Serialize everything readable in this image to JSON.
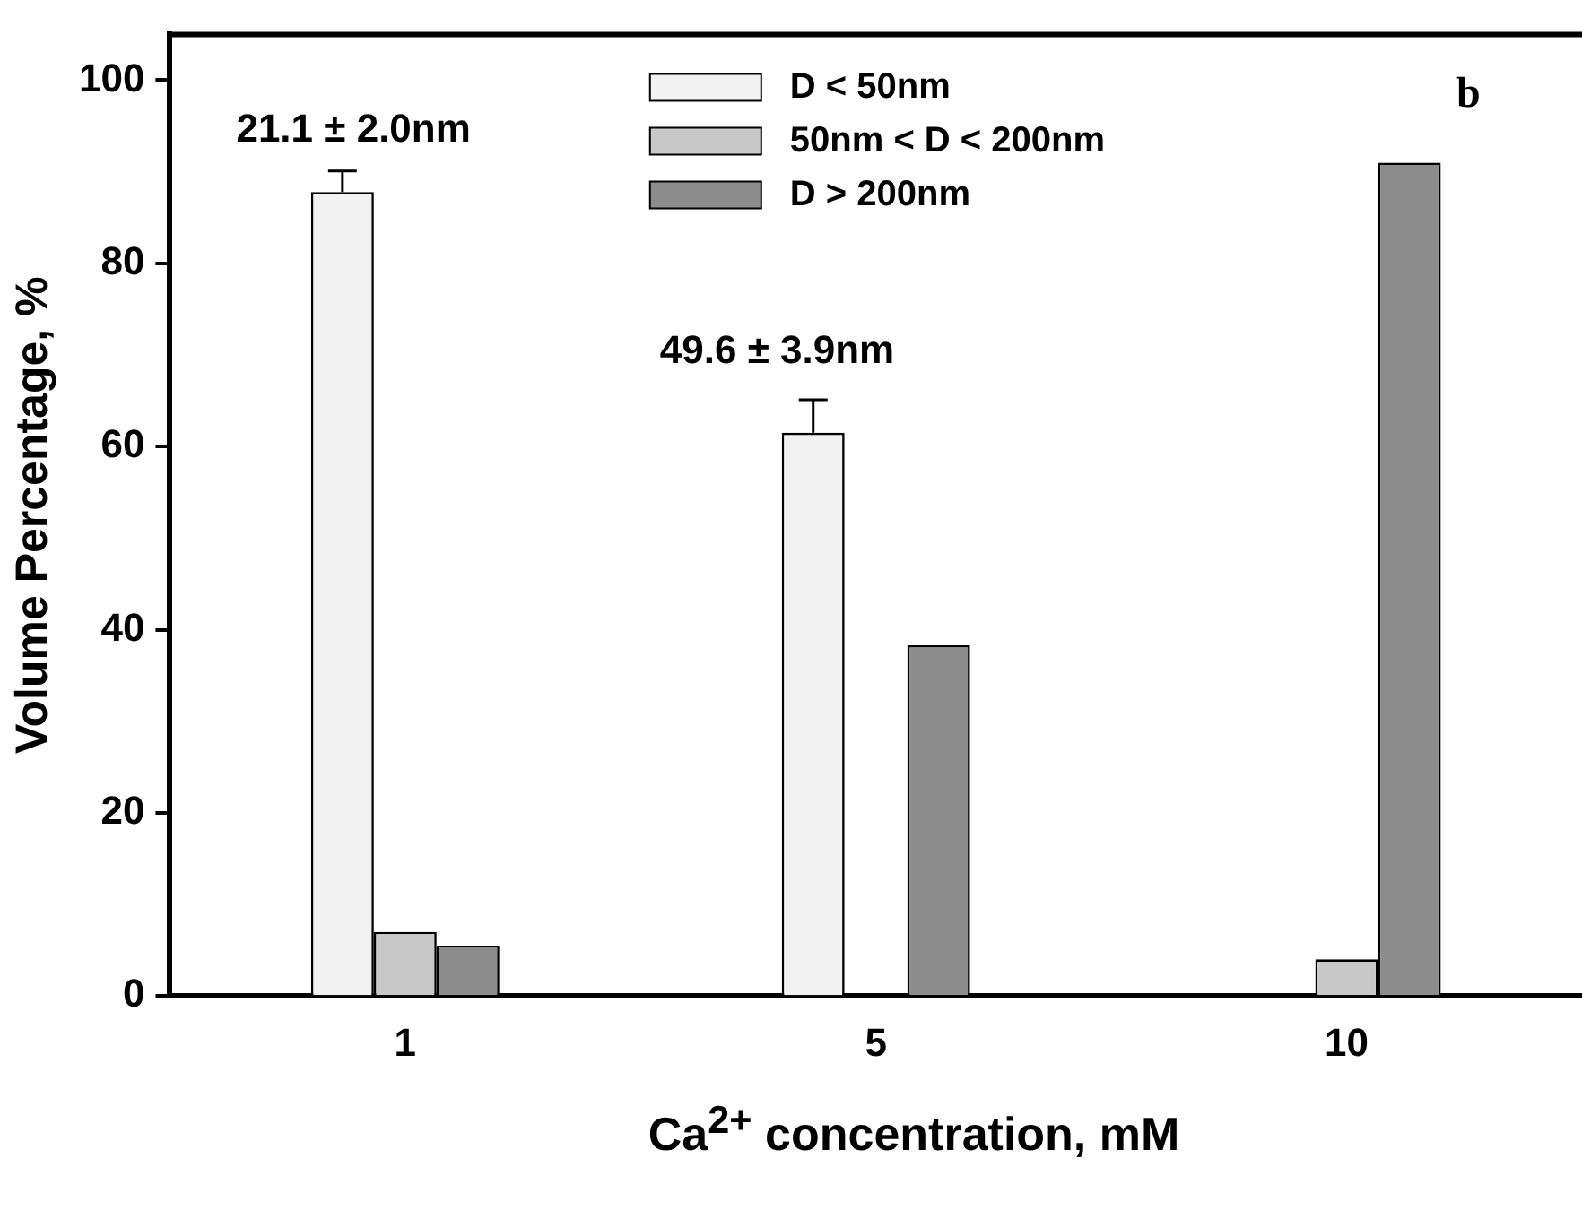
{
  "chart_data": {
    "type": "bar",
    "xlabel": "Ca$^{2+}$ concentration, mM",
    "ylabel": "Volume Percentage, %",
    "categories": [
      "1",
      "5",
      "10"
    ],
    "series": [
      {
        "name": "D < 50nm",
        "color": "#f2f2f2",
        "values": [
          87.8,
          61.5,
          0
        ],
        "errors": [
          [
            87.8,
            90.1
          ],
          [
            61.5,
            65.1
          ],
          null
        ]
      },
      {
        "name": "50nm < D < 200nm",
        "color": "#c8c8c8",
        "values": [
          7.0,
          0,
          4.0
        ]
      },
      {
        "name": "D > 200nm",
        "color": "#8c8c8c",
        "values": [
          5.5,
          38.3,
          91.0
        ]
      }
    ],
    "ylim": [
      0,
      105
    ],
    "yticks": [
      0,
      20,
      40,
      60,
      80,
      100
    ],
    "grid": false,
    "legend": "top",
    "annotations": [
      "21.1 ± 2.0nm",
      "49.6 ± 3.9nm",
      "b"
    ]
  }
}
